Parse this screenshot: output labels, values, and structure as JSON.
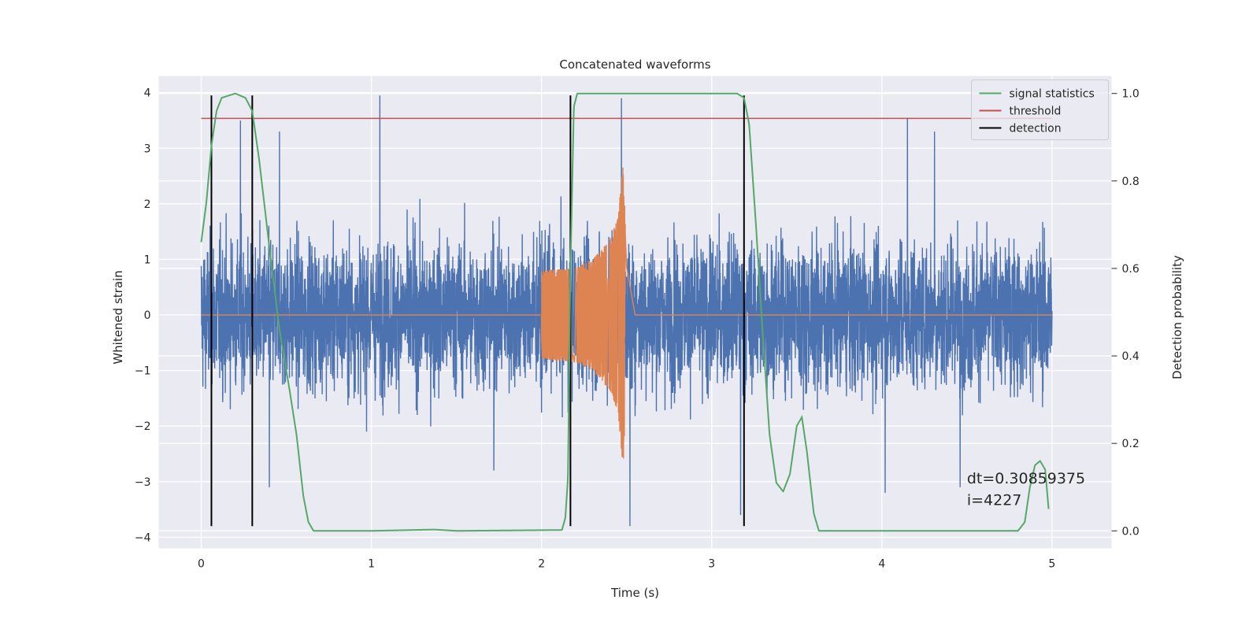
{
  "chart_data": {
    "type": "line",
    "title": "Concatenated waveforms",
    "xlabel": "Time (s)",
    "ylabel": "Whitened strain",
    "ylabel_right": "Detection probability",
    "xlim": [
      -0.25,
      5.35
    ],
    "ylim": [
      -4.2,
      4.3
    ],
    "ylim_right": [
      -0.04,
      1.04
    ],
    "x_ticks": [
      0,
      1,
      2,
      3,
      4,
      5
    ],
    "x_tick_labels": [
      "0",
      "1",
      "2",
      "3",
      "4",
      "5"
    ],
    "y_ticks": [
      4,
      3,
      2,
      1,
      0,
      -1,
      -2,
      -3,
      -4
    ],
    "y_tick_labels": [
      "4",
      "3",
      "2",
      "1",
      "0",
      "−1",
      "−2",
      "−3",
      "−4"
    ],
    "y_right_ticks": [
      1.0,
      0.8,
      0.6,
      0.4,
      0.2,
      0.0
    ],
    "y_right_tick_labels": [
      "1.0",
      "0.8",
      "0.6",
      "0.4",
      "0.2",
      "0.0"
    ],
    "grid": true,
    "legend_position": "top-right",
    "background_color": "#EAEAF2",
    "series": [
      {
        "key": "noise",
        "axis": "left",
        "color": "#4C72B0",
        "sample_rate": 1024,
        "x_range": [
          0,
          5
        ],
        "typical_amplitude": 0.75,
        "peaks": [
          {
            "x": 0.23,
            "y": 3.5
          },
          {
            "x": 0.46,
            "y": 3.3
          },
          {
            "x": 1.05,
            "y": 3.95
          },
          {
            "x": 2.47,
            "y": 3.9
          },
          {
            "x": 4.15,
            "y": 3.55
          },
          {
            "x": 4.31,
            "y": 3.3
          },
          {
            "x": 0.4,
            "y": -3.1
          },
          {
            "x": 1.72,
            "y": -2.8
          },
          {
            "x": 2.52,
            "y": -3.8
          },
          {
            "x": 3.17,
            "y": -3.6
          },
          {
            "x": 4.02,
            "y": -3.2
          },
          {
            "x": 4.46,
            "y": -3.1
          }
        ]
      },
      {
        "key": "injected-signal",
        "axis": "left",
        "color": "#DD8452",
        "x_range": [
          0,
          5
        ],
        "chirp_start": 2.0,
        "merger": 2.49,
        "envelope": [
          [
            2.0,
            0.8
          ],
          [
            2.2,
            0.85
          ],
          [
            2.3,
            1.0
          ],
          [
            2.4,
            1.35
          ],
          [
            2.45,
            1.75
          ],
          [
            2.48,
            2.8
          ],
          [
            2.5,
            1.0
          ],
          [
            2.55,
            0.0
          ]
        ]
      },
      {
        "name": "signal statistics",
        "axis": "right",
        "color": "#55A868",
        "points": [
          [
            0.0,
            0.66
          ],
          [
            0.03,
            0.75
          ],
          [
            0.06,
            0.88
          ],
          [
            0.09,
            0.96
          ],
          [
            0.12,
            0.99
          ],
          [
            0.2,
            1.0
          ],
          [
            0.26,
            0.99
          ],
          [
            0.3,
            0.96
          ],
          [
            0.34,
            0.85
          ],
          [
            0.4,
            0.65
          ],
          [
            0.46,
            0.46
          ],
          [
            0.52,
            0.32
          ],
          [
            0.56,
            0.22
          ],
          [
            0.6,
            0.08
          ],
          [
            0.63,
            0.02
          ],
          [
            0.66,
            0.0
          ],
          [
            1.0,
            0.0
          ],
          [
            1.37,
            0.003
          ],
          [
            1.5,
            0.0
          ],
          [
            2.12,
            0.002
          ],
          [
            2.14,
            0.03
          ],
          [
            2.155,
            0.12
          ],
          [
            2.17,
            0.6
          ],
          [
            2.19,
            0.97
          ],
          [
            2.21,
            1.0
          ],
          [
            3.15,
            1.0
          ],
          [
            3.19,
            0.99
          ],
          [
            3.22,
            0.93
          ],
          [
            3.26,
            0.7
          ],
          [
            3.3,
            0.45
          ],
          [
            3.34,
            0.22
          ],
          [
            3.38,
            0.11
          ],
          [
            3.42,
            0.09
          ],
          [
            3.46,
            0.13
          ],
          [
            3.5,
            0.24
          ],
          [
            3.53,
            0.26
          ],
          [
            3.56,
            0.18
          ],
          [
            3.6,
            0.04
          ],
          [
            3.63,
            0.0
          ],
          [
            4.8,
            0.0
          ],
          [
            4.84,
            0.02
          ],
          [
            4.87,
            0.1
          ],
          [
            4.9,
            0.15
          ],
          [
            4.93,
            0.16
          ],
          [
            4.96,
            0.14
          ],
          [
            4.98,
            0.05
          ]
        ]
      },
      {
        "name": "threshold",
        "axis": "right",
        "color": "#C44E52",
        "value": 0.943,
        "x_range": [
          0,
          5
        ]
      },
      {
        "name": "detection",
        "axis": "left",
        "color": "#000000",
        "x": [
          0.06,
          0.3,
          2.17,
          3.19
        ],
        "y_range": [
          -3.8,
          3.95
        ]
      }
    ],
    "annotations": [
      {
        "text": "dt=0.30859375",
        "x": 4.5,
        "y": -3.03
      },
      {
        "text": " i=4227",
        "x": 4.5,
        "y": -3.42
      }
    ]
  }
}
